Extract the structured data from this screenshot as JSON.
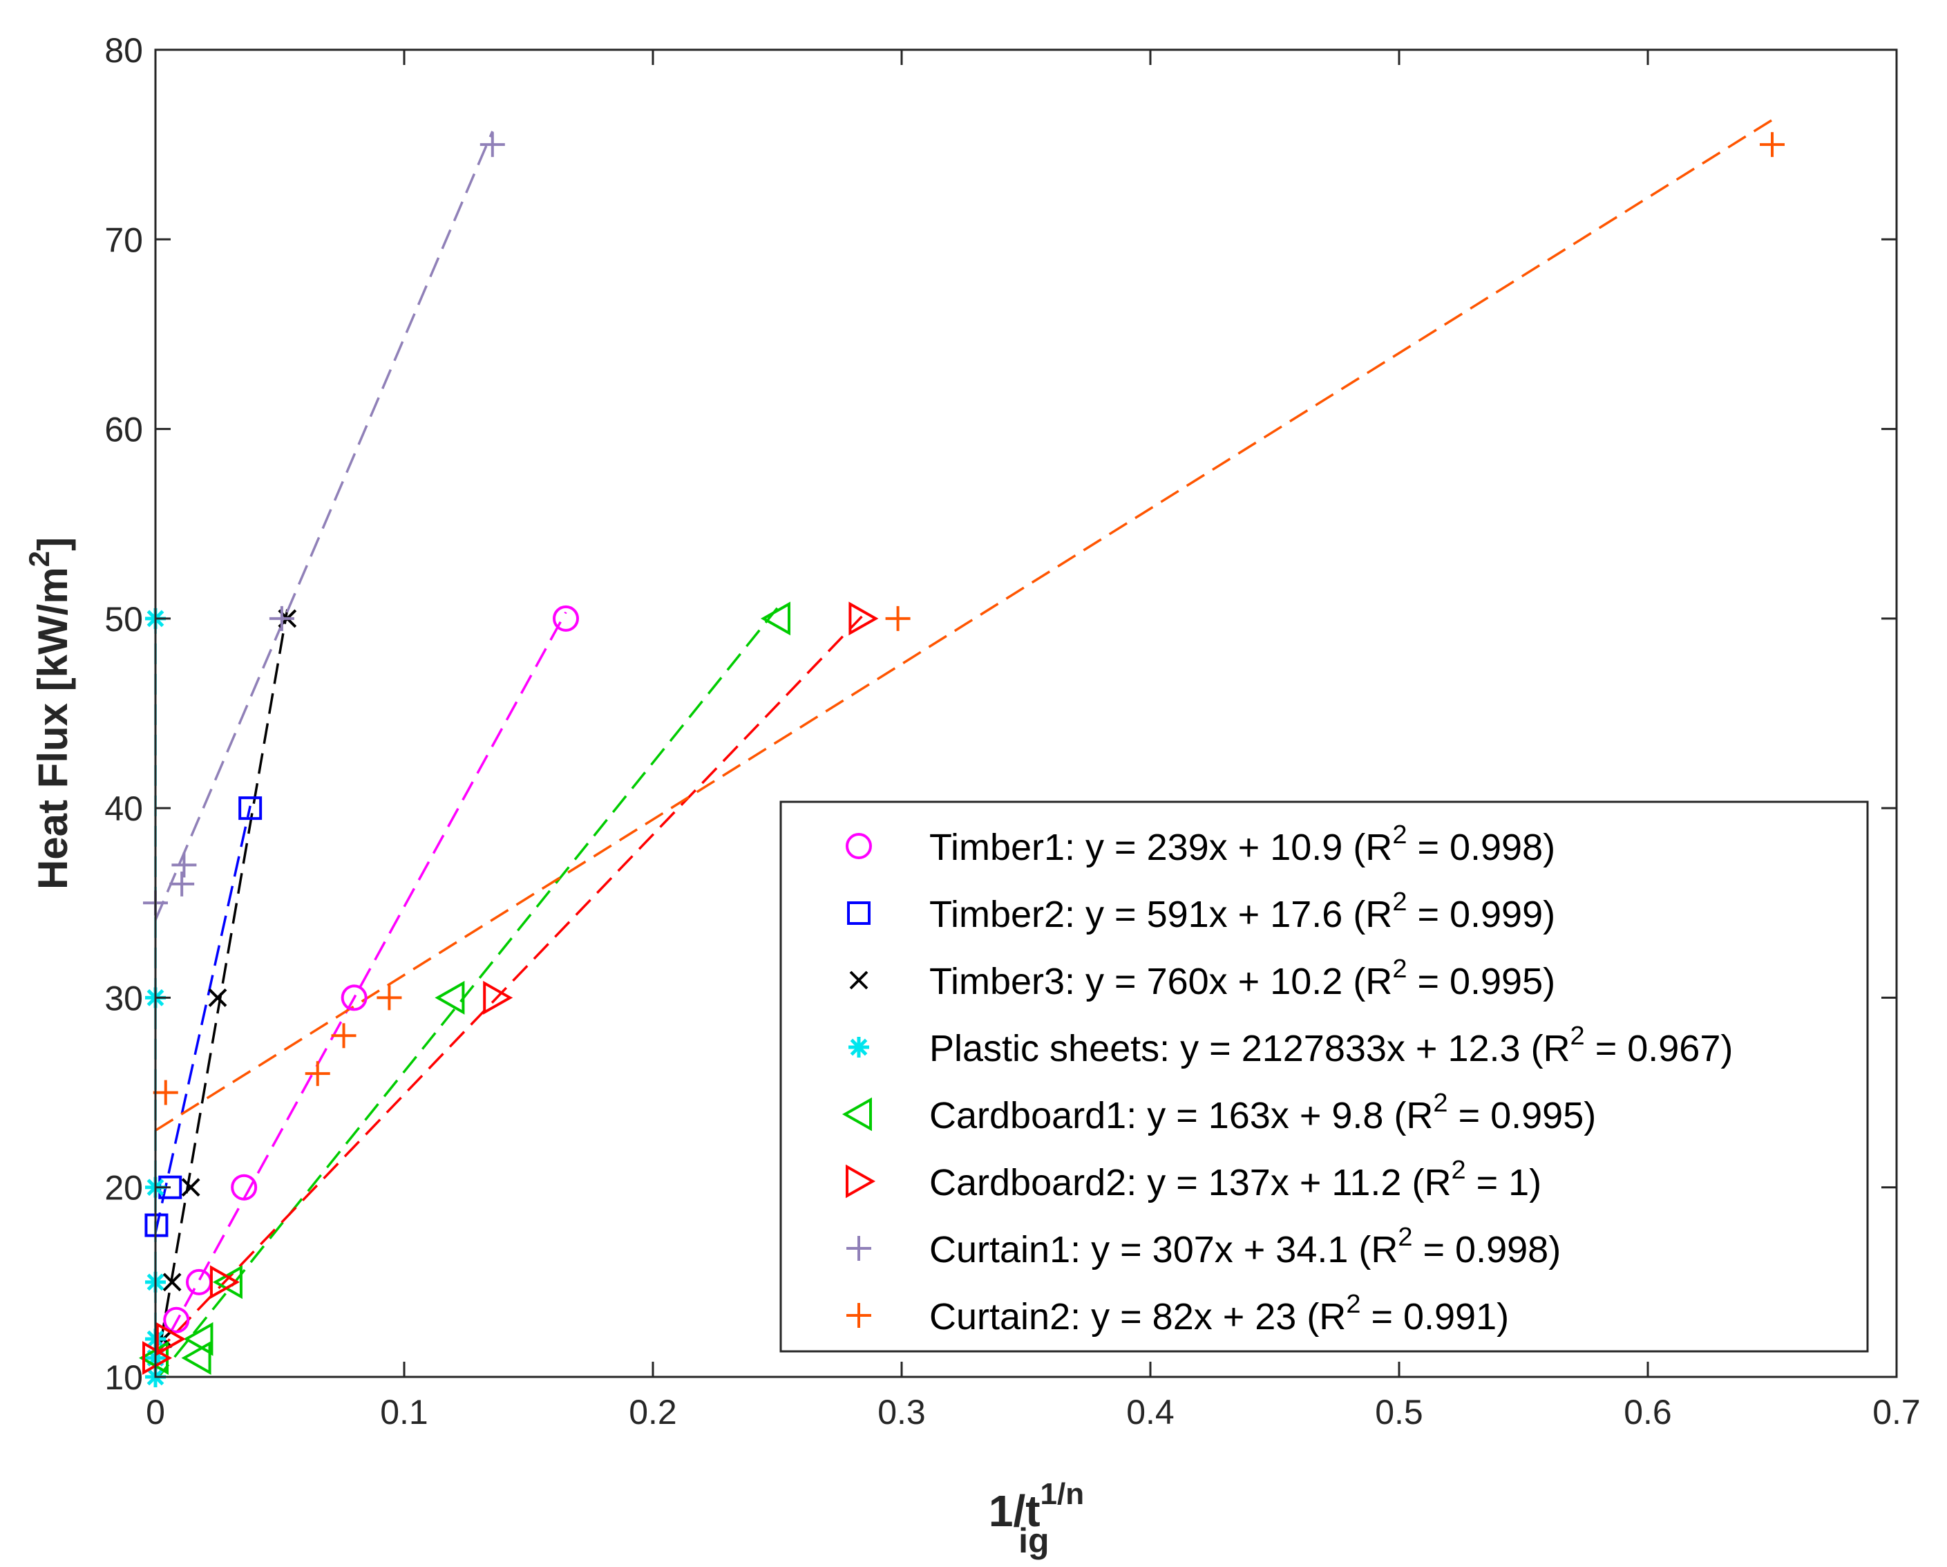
{
  "chart_data": {
    "type": "scatter",
    "xlabel_main": "1/t",
    "xlabel_sub": "ig",
    "xlabel_sup": "1/n",
    "ylabel_main": "Heat Flux [kW/m",
    "ylabel_sup": "2",
    "ylabel_end": "]",
    "xlim": [
      0,
      0.7
    ],
    "ylim": [
      10,
      80
    ],
    "xticks": [
      0,
      0.1,
      0.2,
      0.3,
      0.4,
      0.5,
      0.6,
      0.7
    ],
    "xtick_labels": [
      "0",
      "0.1",
      "0.2",
      "0.3",
      "0.4",
      "0.5",
      "0.6",
      "0.7"
    ],
    "yticks": [
      10,
      20,
      30,
      40,
      50,
      60,
      70,
      80
    ],
    "ytick_labels": [
      "10",
      "20",
      "30",
      "40",
      "50",
      "60",
      "70",
      "80"
    ],
    "legend_position": "bottom-right",
    "series": [
      {
        "name": "Timber1",
        "marker": "circle",
        "color": "#ff00ff",
        "legend": {
          "pre": "Timber1: y = 239x + 10.9 (R",
          "sup": "2",
          "post": " = 0.998)"
        },
        "points": [
          [
            0.0084,
            13
          ],
          [
            0.0175,
            15
          ],
          [
            0.0356,
            20
          ],
          [
            0.0799,
            30
          ],
          [
            0.165,
            50
          ]
        ],
        "fit": {
          "slope": 239,
          "intercept": 10.9,
          "x_range": [
            0.0,
            0.165
          ]
        }
      },
      {
        "name": "Timber2",
        "marker": "square",
        "color": "#0000ff",
        "legend": {
          "pre": "Timber2: y = 591x + 17.6 (R",
          "sup": "2",
          "post": " = 0.999)"
        },
        "points": [
          [
            0.0004,
            18
          ],
          [
            0.0059,
            20
          ],
          [
            0.0381,
            40
          ]
        ],
        "fit": {
          "slope": 591,
          "intercept": 17.6,
          "x_range": [
            0.0,
            0.0381
          ]
        }
      },
      {
        "name": "Timber3",
        "marker": "x",
        "color": "#000000",
        "legend": {
          "pre": "Timber3: y = 760x + 10.2 (R",
          "sup": "2",
          "post": " = 0.995)"
        },
        "points": [
          [
            0.0032,
            12
          ],
          [
            0.0067,
            15
          ],
          [
            0.0142,
            20
          ],
          [
            0.025,
            30
          ],
          [
            0.053,
            50
          ]
        ],
        "fit": {
          "slope": 760,
          "intercept": 10.2,
          "x_range": [
            0.0,
            0.053
          ]
        }
      },
      {
        "name": "Plastic sheets",
        "marker": "asterisk",
        "color": "#00e5ee",
        "legend": {
          "pre": "Plastic sheets: y = 2127833x + 12.3 (R",
          "sup": "2",
          "post": " = 0.967)"
        },
        "points": [
          [
            0.0,
            10
          ],
          [
            0.0,
            11
          ],
          [
            0.0,
            12
          ],
          [
            0.0,
            15
          ],
          [
            0.0,
            20
          ],
          [
            0.0,
            30
          ],
          [
            0.0,
            50
          ]
        ],
        "fit": {
          "slope": 2127833,
          "intercept": 12.3,
          "x_range": [
            0.0,
            1.77e-05
          ]
        }
      },
      {
        "name": "Cardboard1",
        "marker": "triangle-left",
        "color": "#00cc00",
        "legend": {
          "pre": "Cardboard1: y = 163x + 9.8 (R",
          "sup": "2",
          "post": " = 0.995)"
        },
        "points": [
          [
            0.0,
            11
          ],
          [
            0.0171,
            11
          ],
          [
            0.0179,
            12
          ],
          [
            0.0297,
            15
          ],
          [
            0.119,
            30
          ],
          [
            0.25,
            50
          ]
        ],
        "fit": {
          "slope": 163,
          "intercept": 9.8,
          "x_range": [
            0.0,
            0.25
          ]
        }
      },
      {
        "name": "Cardboard2",
        "marker": "triangle-right",
        "color": "#ff0000",
        "legend": {
          "pre": "Cardboard2: y = 137x + 11.2 (R",
          "sup": "2",
          "post": " = 1)"
        },
        "points": [
          [
            0.0,
            11
          ],
          [
            0.0055,
            12
          ],
          [
            0.0272,
            15
          ],
          [
            0.137,
            30
          ],
          [
            0.284,
            50
          ]
        ],
        "fit": {
          "slope": 137,
          "intercept": 11.2,
          "x_range": [
            0.0,
            0.284
          ]
        }
      },
      {
        "name": "Curtain1",
        "marker": "plus",
        "color": "#9080b8",
        "legend": {
          "pre": "Curtain1: y = 307x + 34.1 (R",
          "sup": "2",
          "post": " = 0.998)"
        },
        "points": [
          [
            0.0,
            35
          ],
          [
            0.0106,
            36
          ],
          [
            0.0115,
            37
          ],
          [
            0.0508,
            50
          ],
          [
            0.1355,
            75
          ]
        ],
        "fit": {
          "slope": 307,
          "intercept": 34.1,
          "x_range": [
            0.0,
            0.1355
          ]
        }
      },
      {
        "name": "Curtain2",
        "marker": "plus",
        "color": "#ff5500",
        "legend": {
          "pre": "Curtain2: y = 82x + 23 (R",
          "sup": "2",
          "post": " = 0.991)"
        },
        "points": [
          [
            0.0041,
            25
          ],
          [
            0.0652,
            26
          ],
          [
            0.0757,
            28
          ],
          [
            0.094,
            30
          ],
          [
            0.2985,
            50
          ],
          [
            0.65,
            75
          ]
        ],
        "fit": {
          "slope": 82,
          "intercept": 23,
          "x_range": [
            0.0,
            0.65
          ]
        }
      }
    ]
  }
}
